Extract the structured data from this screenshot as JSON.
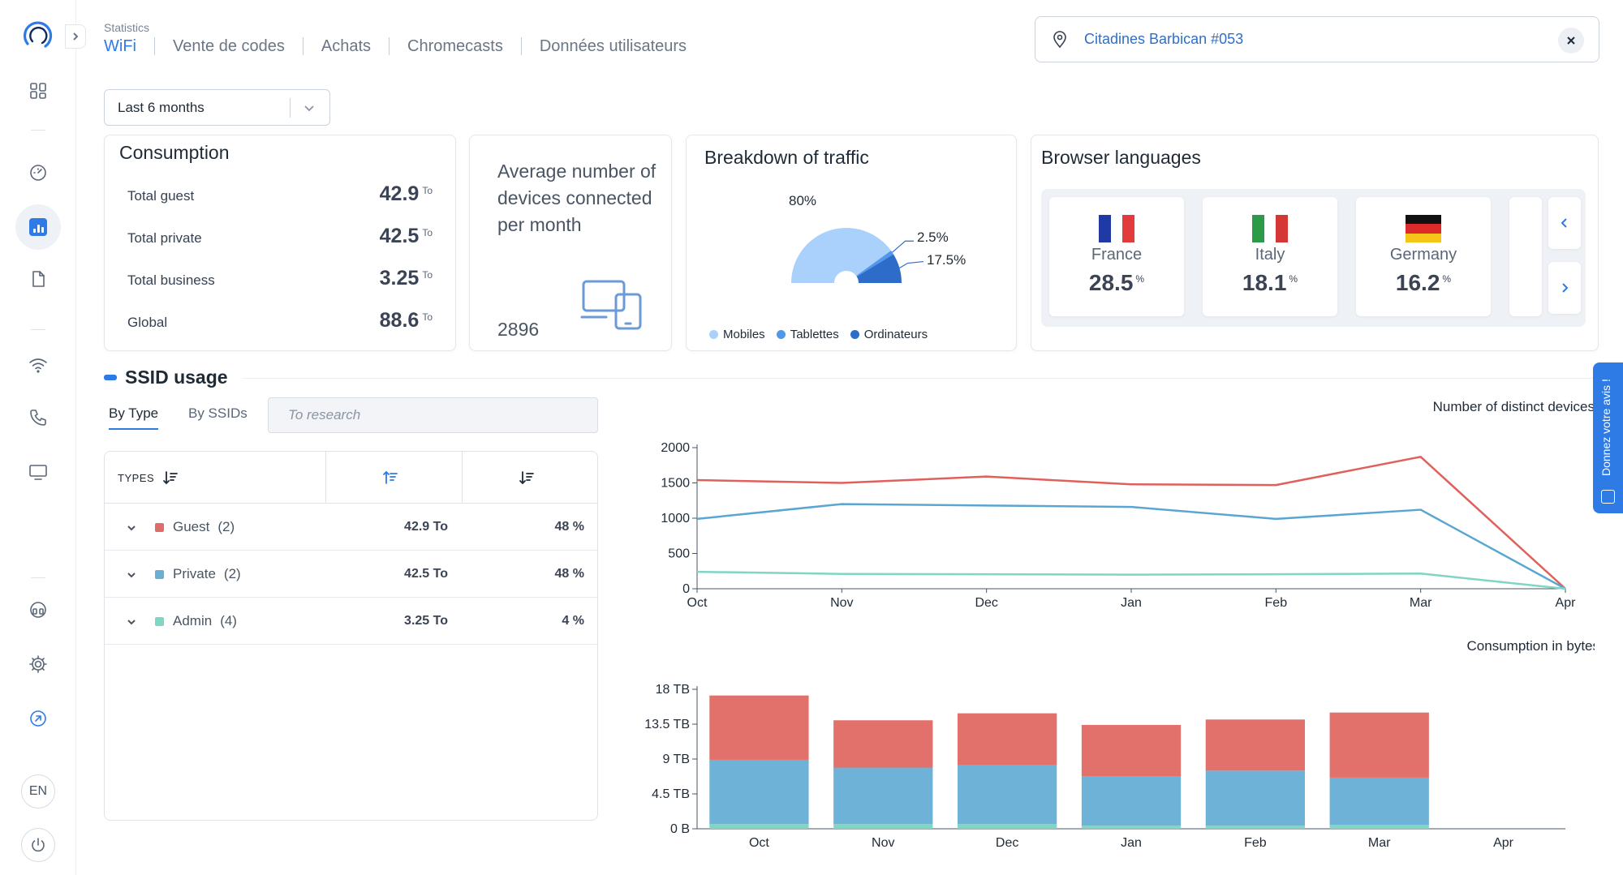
{
  "sidebar": {
    "items": [
      {
        "name": "dashboard"
      },
      {
        "name": "gauge"
      },
      {
        "name": "statistics"
      },
      {
        "name": "document"
      },
      {
        "name": "wifi"
      },
      {
        "name": "phone"
      },
      {
        "name": "monitor"
      },
      {
        "name": "support"
      },
      {
        "name": "settings"
      },
      {
        "name": "external-link"
      }
    ],
    "language": "EN"
  },
  "header": {
    "breadcrumb": "Statistics",
    "tabs": [
      "WiFi",
      "Vente de codes",
      "Achats",
      "Chromecasts",
      "Données utilisateurs"
    ],
    "active_tab": "WiFi",
    "location": "Citadines Barbican #053"
  },
  "filter": {
    "period": "Last 6 months"
  },
  "consumption": {
    "title": "Consumption",
    "rows": [
      {
        "label": "Total guest",
        "value": "42.9",
        "unit": "To"
      },
      {
        "label": "Total private",
        "value": "42.5",
        "unit": "To"
      },
      {
        "label": "Total business",
        "value": "3.25",
        "unit": "To"
      },
      {
        "label": "Global",
        "value": "88.6",
        "unit": "To"
      }
    ]
  },
  "average": {
    "title": "Average number of devices connected per month",
    "value": "2896"
  },
  "traffic": {
    "title": "Breakdown of traffic",
    "labels": {
      "mobiles": "80%",
      "tablettes": "2.5%",
      "ordinateurs": "17.5%"
    },
    "legend": [
      "Mobiles",
      "Tablettes",
      "Ordinateurs"
    ],
    "colors": [
      "#a9d1fb",
      "#4f98ec",
      "#2d6cc9"
    ]
  },
  "languages": {
    "title": "Browser languages",
    "items": [
      {
        "country": "France",
        "pct": "28.5",
        "unit": "%"
      },
      {
        "country": "Italy",
        "pct": "18.1",
        "unit": "%"
      },
      {
        "country": "Germany",
        "pct": "16.2",
        "unit": "%"
      }
    ]
  },
  "ssid": {
    "title": "SSID usage",
    "tabs": [
      "By Type",
      "By SSIDs"
    ],
    "search_placeholder": "To research",
    "columns": [
      "TYPES"
    ],
    "rows": [
      {
        "name": "Guest",
        "count": "(2)",
        "value": "42.9 To",
        "pct": "48 %",
        "color": "#e06c6a"
      },
      {
        "name": "Private",
        "count": "(2)",
        "value": "42.5 To",
        "pct": "48 %",
        "color": "#6aaed6"
      },
      {
        "name": "Admin",
        "count": "(4)",
        "value": "3.25 To",
        "pct": "4 %",
        "color": "#7fd6c2"
      }
    ]
  },
  "chart_data": [
    {
      "type": "line",
      "title": "Number of distinct devices",
      "x": [
        "Oct",
        "Nov",
        "Dec",
        "Jan",
        "Feb",
        "Mar",
        "Apr"
      ],
      "yticks": [
        "0",
        "500",
        "1000",
        "1500",
        "2000"
      ],
      "ylim": [
        0,
        2000
      ],
      "series": [
        {
          "values": [
            1540,
            1500,
            1590,
            1480,
            1470,
            1870,
            0
          ],
          "color": "#e0605c"
        },
        {
          "values": [
            990,
            1200,
            1180,
            1160,
            990,
            1120,
            0
          ],
          "color": "#5aa6d3"
        },
        {
          "values": [
            240,
            210,
            205,
            200,
            205,
            215,
            0
          ],
          "color": "#7fd6c2"
        }
      ]
    },
    {
      "type": "bar",
      "title": "Consumption in bytes",
      "categories": [
        "Oct",
        "Nov",
        "Dec",
        "Jan",
        "Feb",
        "Mar",
        "Apr"
      ],
      "yticks": [
        "0 B",
        "4.5 TB",
        "9 TB",
        "13.5 TB",
        "18 TB"
      ],
      "ylim": [
        0,
        18
      ],
      "stacked": true,
      "series": [
        {
          "values": [
            0.6,
            0.6,
            0.6,
            0.4,
            0.4,
            0.5,
            0
          ],
          "color": "#7fd6c2"
        },
        {
          "values": [
            8.3,
            7.3,
            7.6,
            6.4,
            7.1,
            6.1,
            0
          ],
          "color": "#6fb2d8"
        },
        {
          "values": [
            8.3,
            6.1,
            6.7,
            6.6,
            6.6,
            8.4,
            0
          ],
          "color": "#e2706b"
        }
      ]
    }
  ],
  "feedback": {
    "label": "Donnez votre avis !"
  }
}
